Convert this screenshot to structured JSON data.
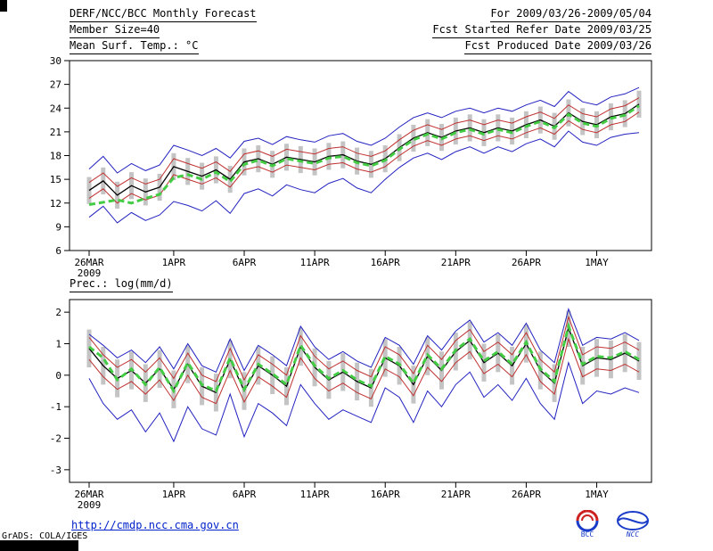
{
  "header": {
    "title": "DERF/NCC/BCC Monthly Forecast",
    "member_size": "Member Size=40",
    "for_range": "For 2009/03/26-2009/05/04",
    "refer_date": "Fcst Started Refer Date 2009/03/25",
    "produced_date": "Fcst Produced Date 2009/03/26"
  },
  "footer": {
    "url": "http://cmdp.ncc.cma.gov.cn",
    "grads_credit": "GrADS: COLA/IGES",
    "logo_bcc": "BCC",
    "logo_ncc": "NCC"
  },
  "chart_data": [
    {
      "type": "line",
      "id": "temp",
      "title": "Mean Surf. Temp.: °C",
      "xlabel": "",
      "ylabel": "",
      "ylim": [
        6,
        30
      ],
      "yticks": [
        6,
        9,
        12,
        15,
        18,
        21,
        24,
        27,
        30
      ],
      "n": 40,
      "x_tick_days": [
        0,
        6,
        11,
        16,
        21,
        26,
        31,
        36
      ],
      "x_tick_labels": [
        "26MAR",
        "1APR",
        "6APR",
        "11APR",
        "16APR",
        "21APR",
        "26APR",
        "1MAY"
      ],
      "x_first_sublabel": "2009",
      "grid": false,
      "legend": "none",
      "bars": {
        "name": "ensemble-spread-bars",
        "color": "#c4c4c4",
        "top": [
          15.3,
          16.5,
          14.7,
          15.9,
          15.1,
          15.7,
          18.3,
          17.7,
          17.1,
          17.9,
          16.7,
          18.9,
          19.3,
          18.6,
          19.5,
          19.2,
          18.9,
          19.6,
          19.8,
          19.0,
          18.6,
          19.3,
          20.7,
          21.9,
          22.6,
          22.0,
          22.8,
          23.2,
          22.6,
          23.2,
          22.8,
          23.6,
          24.2,
          23.4,
          25.1,
          24.0,
          23.6,
          24.6,
          25.0,
          26.2
        ],
        "bottom": [
          11.9,
          13.1,
          11.3,
          12.5,
          11.7,
          12.3,
          14.9,
          14.3,
          13.7,
          14.5,
          13.3,
          15.5,
          15.9,
          15.2,
          16.1,
          15.8,
          15.5,
          16.2,
          16.4,
          15.6,
          15.2,
          15.9,
          17.3,
          18.5,
          19.2,
          18.6,
          19.4,
          19.8,
          19.2,
          19.8,
          19.4,
          20.2,
          20.8,
          20.0,
          21.7,
          20.6,
          20.2,
          21.2,
          21.6,
          22.8
        ]
      },
      "series": [
        {
          "name": "ensemble-max",
          "color": "#2222c0",
          "width": 1,
          "values": [
            16.3,
            17.9,
            15.8,
            17.0,
            16.1,
            16.8,
            19.3,
            18.7,
            18.0,
            18.9,
            17.7,
            19.8,
            20.2,
            19.4,
            20.4,
            20.0,
            19.7,
            20.5,
            20.8,
            19.8,
            19.3,
            20.2,
            21.6,
            22.8,
            23.4,
            22.8,
            23.6,
            24.0,
            23.4,
            24.0,
            23.6,
            24.4,
            25.0,
            24.2,
            26.1,
            24.8,
            24.4,
            25.4,
            25.8,
            26.6
          ]
        },
        {
          "name": "ensemble-min",
          "color": "#2222c0",
          "width": 1,
          "values": [
            10.2,
            11.6,
            9.5,
            10.8,
            9.8,
            10.5,
            12.2,
            11.7,
            11.0,
            12.3,
            10.7,
            13.2,
            13.8,
            12.9,
            14.3,
            13.7,
            13.3,
            14.5,
            15.1,
            13.9,
            13.3,
            15.0,
            16.5,
            17.7,
            18.3,
            17.5,
            18.5,
            19.1,
            18.3,
            19.1,
            18.5,
            19.5,
            20.1,
            19.1,
            21.1,
            19.7,
            19.3,
            20.3,
            20.7,
            20.9
          ]
        },
        {
          "name": "upper-quantile",
          "color": "#c03030",
          "width": 1,
          "values": [
            14.6,
            15.8,
            14.1,
            15.2,
            14.4,
            15.0,
            17.6,
            17.0,
            16.4,
            17.2,
            16.0,
            18.2,
            18.6,
            17.9,
            18.8,
            18.5,
            18.2,
            18.9,
            19.1,
            18.3,
            17.9,
            18.6,
            20.0,
            21.2,
            21.9,
            21.3,
            22.1,
            22.5,
            21.9,
            22.5,
            22.1,
            22.9,
            23.5,
            22.7,
            24.4,
            23.3,
            22.9,
            23.9,
            24.3,
            25.3
          ]
        },
        {
          "name": "lower-quantile",
          "color": "#c03030",
          "width": 1,
          "values": [
            12.6,
            13.8,
            12.0,
            13.2,
            12.4,
            13.0,
            15.6,
            15.0,
            14.4,
            15.2,
            14.0,
            16.2,
            16.6,
            15.9,
            16.8,
            16.5,
            16.2,
            16.9,
            17.1,
            16.3,
            15.9,
            16.6,
            18.0,
            19.2,
            19.9,
            19.3,
            20.1,
            20.5,
            19.9,
            20.5,
            20.1,
            20.9,
            21.5,
            20.7,
            22.4,
            21.3,
            20.9,
            21.9,
            22.3,
            23.5
          ]
        },
        {
          "name": "ensemble-mean",
          "color": "#000000",
          "width": 1.3,
          "values": [
            13.6,
            14.8,
            13.0,
            14.2,
            13.4,
            14.0,
            16.6,
            16.0,
            15.4,
            16.2,
            15.0,
            17.2,
            17.6,
            16.9,
            17.8,
            17.5,
            17.2,
            17.9,
            18.1,
            17.3,
            16.9,
            17.6,
            19.0,
            20.2,
            20.9,
            20.3,
            21.1,
            21.5,
            20.9,
            21.5,
            21.1,
            21.9,
            22.5,
            21.7,
            23.4,
            22.3,
            21.9,
            22.9,
            23.3,
            24.5
          ]
        },
        {
          "name": "observation",
          "color": "#44cc44",
          "width": 3,
          "dashed": true,
          "values": [
            11.8,
            12.1,
            12.4,
            12.0,
            12.6,
            13.1,
            15.2,
            15.6,
            15.0,
            15.9,
            14.7,
            16.9,
            17.4,
            16.7,
            17.6,
            17.3,
            17.0,
            17.7,
            17.9,
            17.1,
            16.7,
            17.4,
            18.8,
            20.0,
            20.7,
            20.1,
            20.9,
            21.3,
            20.7,
            21.3,
            20.9,
            21.7,
            22.3,
            21.5,
            23.2,
            22.1,
            21.7,
            22.7,
            23.1,
            24.3
          ]
        }
      ]
    },
    {
      "type": "line",
      "id": "precip",
      "title": "Prec.: log(mm/d)",
      "xlabel": "",
      "ylabel": "",
      "ylim": [
        -3,
        2
      ],
      "yticks": [
        -3,
        -2,
        -1,
        0,
        1,
        2
      ],
      "n": 40,
      "x_tick_days": [
        0,
        6,
        11,
        16,
        21,
        26,
        31,
        36
      ],
      "x_tick_labels": [
        "26MAR",
        "1APR",
        "6APR",
        "11APR",
        "16APR",
        "21APR",
        "26APR",
        "1MAY"
      ],
      "x_first_sublabel": "2009",
      "grid": false,
      "legend": "none",
      "bars": {
        "name": "ensemble-spread-bars",
        "color": "#c4c4c4",
        "top": [
          1.45,
          0.9,
          0.5,
          0.75,
          0.35,
          0.8,
          0.15,
          0.95,
          0.25,
          0.05,
          1.1,
          0.1,
          0.9,
          0.6,
          0.25,
          1.5,
          0.85,
          0.45,
          0.7,
          0.4,
          0.2,
          1.15,
          0.9,
          0.3,
          1.2,
          0.75,
          1.35,
          1.7,
          1.0,
          1.3,
          0.9,
          1.6,
          0.75,
          0.35,
          2.05,
          0.9,
          1.15,
          1.1,
          1.3,
          1.05
        ],
        "bottom": [
          0.25,
          -0.3,
          -0.7,
          -0.45,
          -0.85,
          -0.4,
          -1.05,
          -0.25,
          -0.95,
          -1.15,
          -0.1,
          -1.1,
          -0.3,
          -0.6,
          -0.95,
          0.3,
          -0.35,
          -0.75,
          -0.5,
          -0.8,
          -1.0,
          -0.05,
          -0.3,
          -0.9,
          0.0,
          -0.45,
          0.15,
          0.5,
          -0.2,
          0.1,
          -0.3,
          0.4,
          -0.45,
          -0.85,
          0.9,
          -0.3,
          -0.05,
          -0.1,
          0.1,
          -0.15
        ]
      },
      "series": [
        {
          "name": "ensemble-max",
          "color": "#2222c0",
          "width": 1,
          "values": [
            1.3,
            0.95,
            0.55,
            0.8,
            0.4,
            0.9,
            0.2,
            1.0,
            0.3,
            0.1,
            1.15,
            0.15,
            0.95,
            0.65,
            0.3,
            1.55,
            0.9,
            0.5,
            0.75,
            0.45,
            0.25,
            1.2,
            0.95,
            0.35,
            1.25,
            0.8,
            1.4,
            1.75,
            1.05,
            1.35,
            0.95,
            1.65,
            0.8,
            0.4,
            2.1,
            0.95,
            1.2,
            1.15,
            1.35,
            1.1
          ]
        },
        {
          "name": "ensemble-min",
          "color": "#2222c0",
          "width": 1,
          "values": [
            -0.1,
            -0.9,
            -1.4,
            -1.1,
            -1.8,
            -1.2,
            -2.1,
            -1.0,
            -1.7,
            -1.9,
            -0.6,
            -1.95,
            -0.9,
            -1.2,
            -1.6,
            -0.3,
            -0.9,
            -1.4,
            -1.1,
            -1.3,
            -1.5,
            -0.4,
            -0.7,
            -1.5,
            -0.5,
            -1.0,
            -0.3,
            0.1,
            -0.7,
            -0.3,
            -0.8,
            -0.1,
            -0.9,
            -1.4,
            0.4,
            -0.9,
            -0.5,
            -0.6,
            -0.4,
            -0.55
          ]
        },
        {
          "name": "upper-quantile",
          "color": "#c03030",
          "width": 1,
          "values": [
            1.2,
            0.65,
            0.25,
            0.5,
            0.1,
            0.55,
            -0.1,
            0.7,
            0.0,
            -0.2,
            0.85,
            -0.15,
            0.65,
            0.35,
            0.0,
            1.25,
            0.6,
            0.2,
            0.45,
            0.15,
            -0.05,
            0.9,
            0.65,
            0.05,
            0.95,
            0.5,
            1.1,
            1.45,
            0.75,
            1.05,
            0.65,
            1.35,
            0.5,
            0.1,
            1.85,
            0.65,
            0.9,
            0.85,
            1.05,
            0.8
          ]
        },
        {
          "name": "lower-quantile",
          "color": "#c03030",
          "width": 1,
          "values": [
            0.5,
            -0.05,
            -0.45,
            -0.2,
            -0.6,
            -0.15,
            -0.8,
            0.0,
            -0.7,
            -0.9,
            0.15,
            -0.85,
            -0.05,
            -0.35,
            -0.7,
            0.55,
            -0.1,
            -0.5,
            -0.25,
            -0.55,
            -0.75,
            0.2,
            -0.05,
            -0.65,
            0.25,
            -0.2,
            0.4,
            0.75,
            0.05,
            0.35,
            -0.05,
            0.65,
            -0.2,
            -0.6,
            1.15,
            -0.05,
            0.2,
            0.15,
            0.35,
            0.1
          ]
        },
        {
          "name": "ensemble-mean",
          "color": "#000000",
          "width": 1.3,
          "values": [
            0.85,
            0.3,
            -0.1,
            0.15,
            -0.25,
            0.2,
            -0.45,
            0.35,
            -0.35,
            -0.55,
            0.5,
            -0.5,
            0.3,
            0.0,
            -0.35,
            0.9,
            0.25,
            -0.15,
            0.1,
            -0.2,
            -0.4,
            0.55,
            0.3,
            -0.3,
            0.6,
            0.15,
            0.75,
            1.1,
            0.4,
            0.7,
            0.3,
            1.0,
            0.15,
            -0.25,
            1.5,
            0.3,
            0.55,
            0.5,
            0.7,
            0.45
          ]
        },
        {
          "name": "observation",
          "color": "#44cc44",
          "width": 3,
          "dashed": true,
          "values": [
            0.9,
            0.55,
            -0.15,
            0.2,
            -0.3,
            0.25,
            -0.5,
            0.4,
            -0.3,
            -0.5,
            0.55,
            -0.45,
            0.35,
            0.05,
            -0.3,
            0.95,
            0.3,
            -0.1,
            0.15,
            -0.15,
            -0.35,
            0.6,
            0.35,
            -0.25,
            0.65,
            0.2,
            0.8,
            1.15,
            0.45,
            0.75,
            0.35,
            1.05,
            0.2,
            -0.2,
            1.55,
            0.35,
            0.6,
            0.55,
            0.75,
            0.5
          ]
        }
      ]
    }
  ]
}
